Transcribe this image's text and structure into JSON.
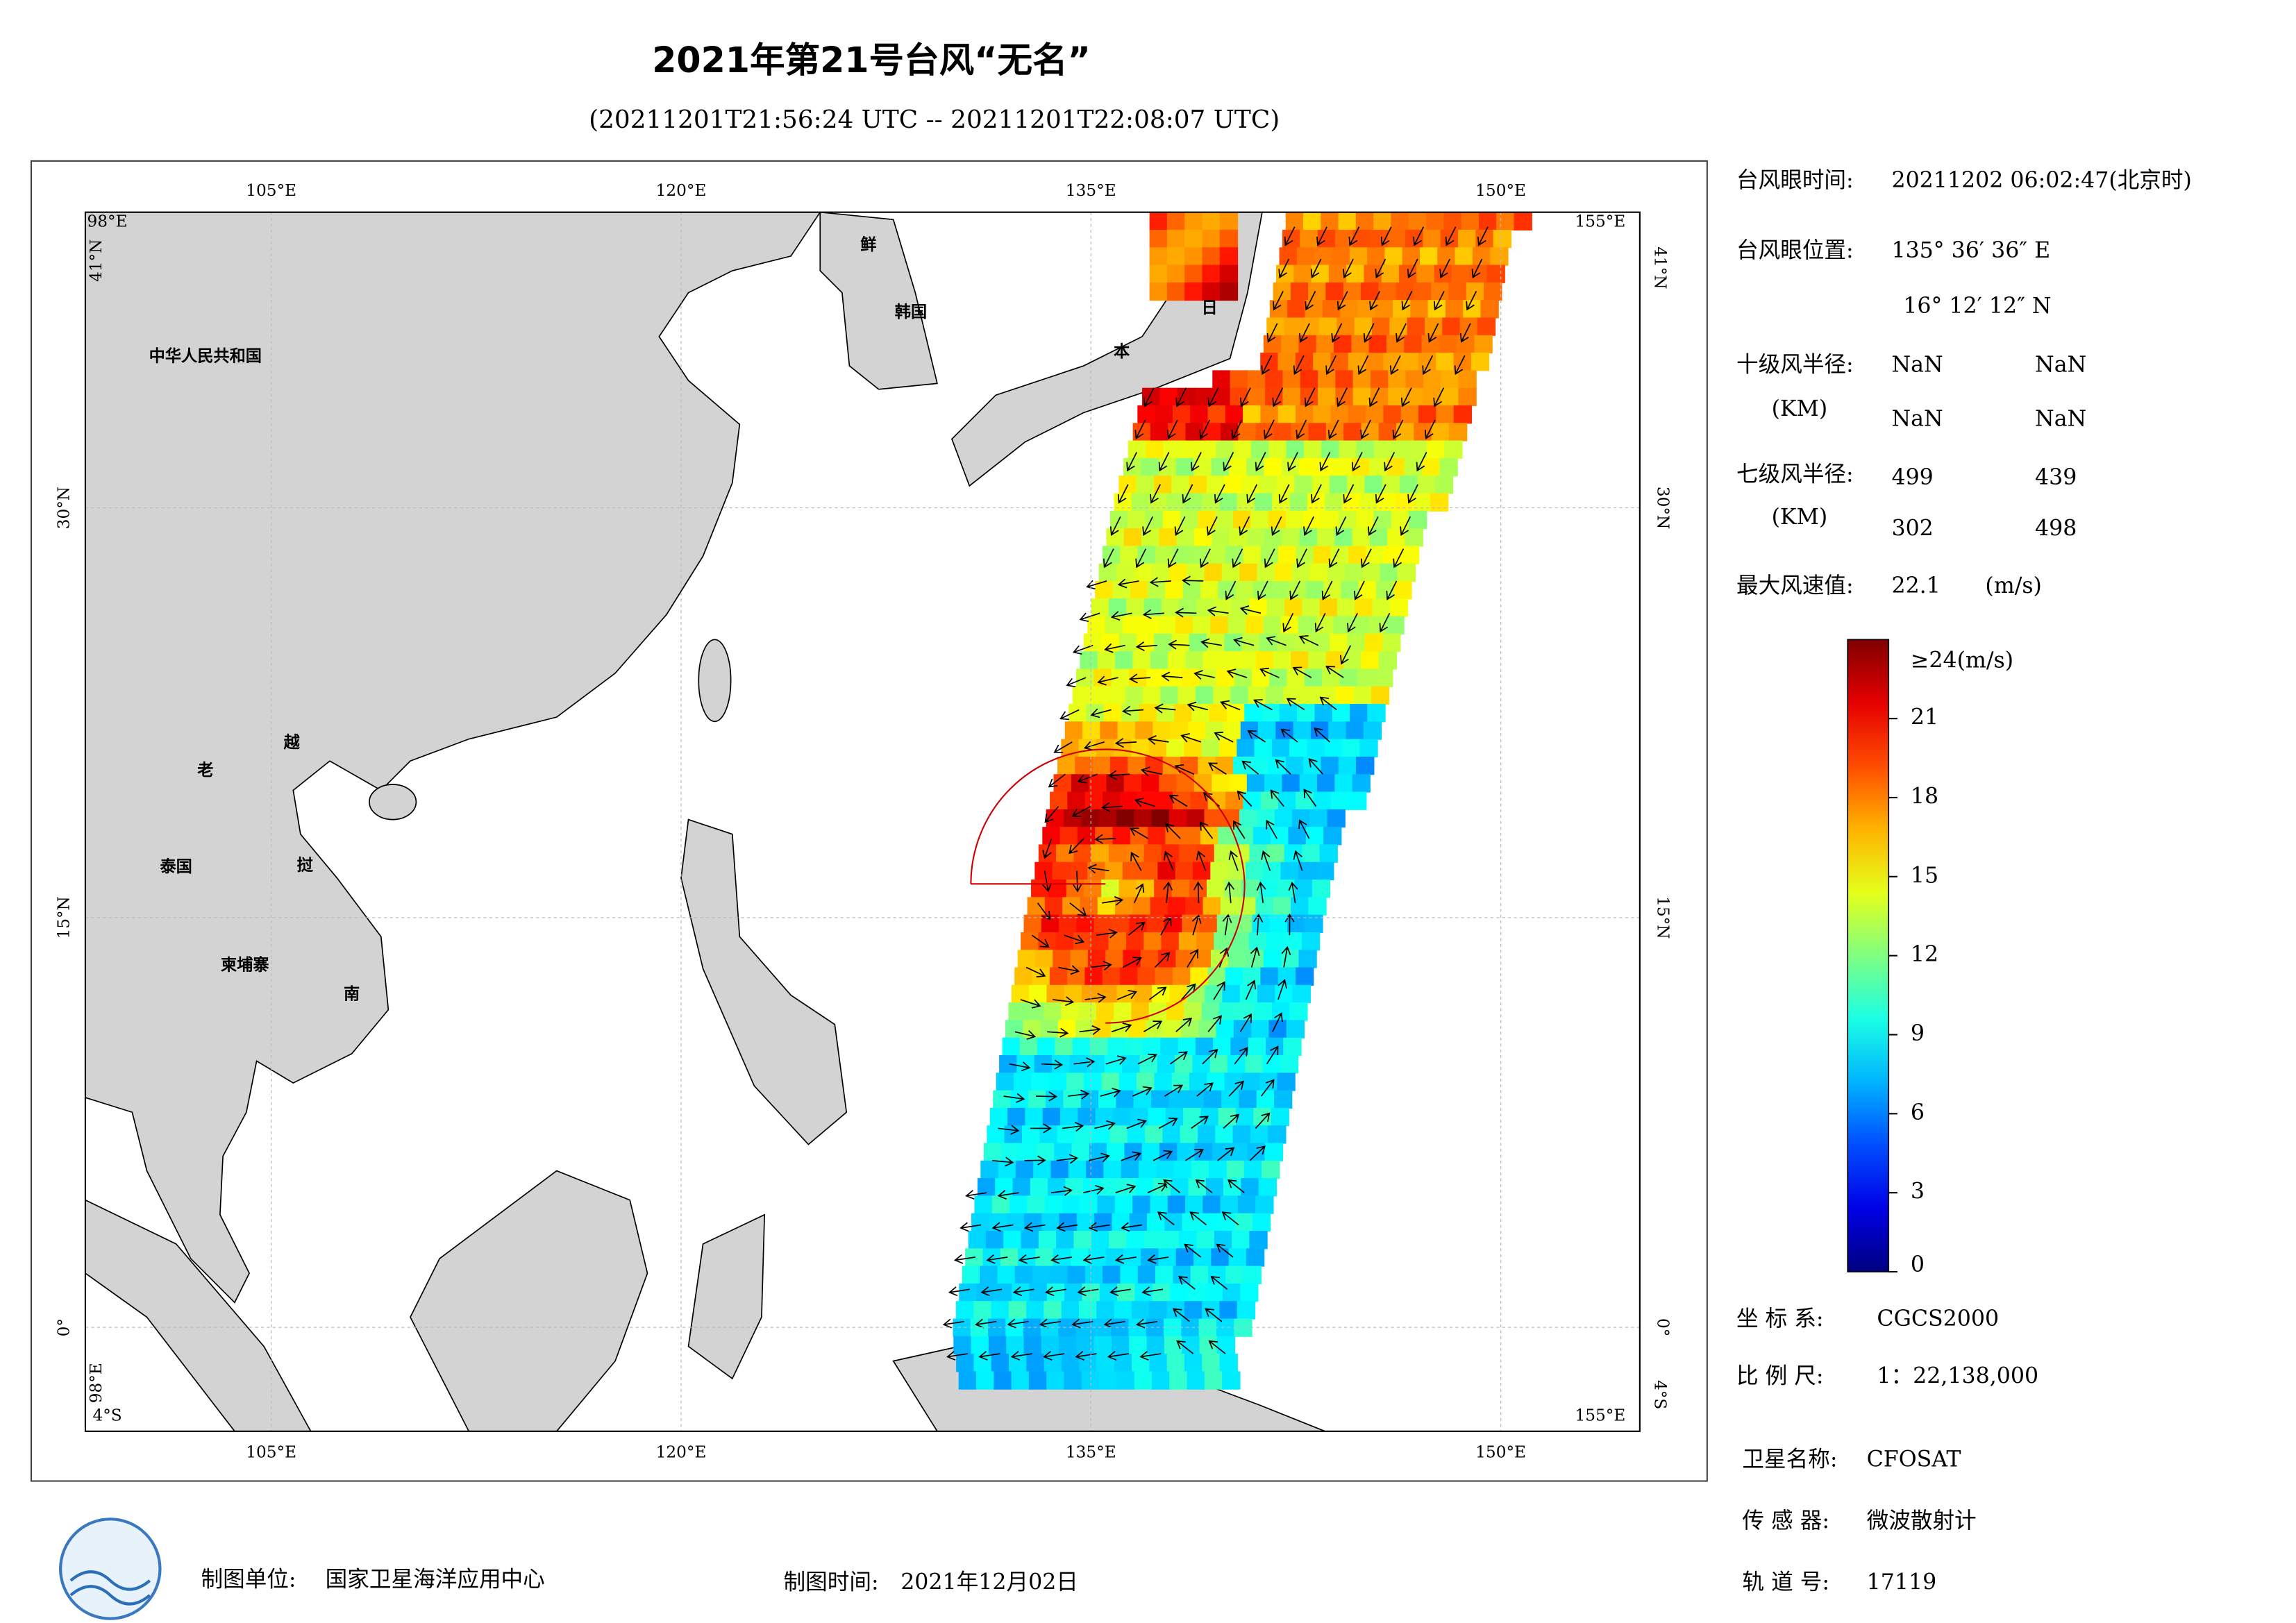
{
  "header": {
    "title": "2021年第21号台风“无名”",
    "subtitle": "(20211201T21:56:24 UTC -- 20211201T22:08:07 UTC)"
  },
  "map": {
    "lon_labels": [
      "105°E",
      "120°E",
      "135°E",
      "150°E"
    ],
    "lat_labels": [
      "30°N",
      "15°N",
      "0°"
    ],
    "corners": {
      "west": "98°E",
      "east": "155°E",
      "north": "41°N",
      "south": "4°S"
    },
    "place_labels": [
      "中华人民共和国",
      "鲜",
      "韩国",
      "日",
      "本",
      "老",
      "越",
      "挝",
      "泰国",
      "柬埔寨",
      "南"
    ]
  },
  "info": {
    "eye_time_label": "台风眼时间:",
    "eye_time": "20211202 06:02:47(北京时)",
    "eye_pos_label": "台风眼位置:",
    "eye_lon": "135° 36′ 36″ E",
    "eye_lat": "16° 12′ 12″ N",
    "r10_label": "十级风半径:",
    "unit_km": "(KM)",
    "r10": [
      "NaN",
      "NaN",
      "NaN",
      "NaN"
    ],
    "r7_label": "七级风半径:",
    "r7": [
      499,
      439,
      302,
      498
    ],
    "max_wind_label": "最大风速值:",
    "max_wind": 22.1,
    "max_wind_unit": "(m/s)",
    "crs_label": "坐 标 系:",
    "crs": "CGCS2000",
    "scale_label": "比 例 尺:",
    "scale": "1：22,138,000",
    "satellite_label": "卫星名称:",
    "satellite": "CFOSAT",
    "sensor_label": "传 感 器:",
    "sensor": "微波散射计",
    "orbit_label": "轨 道 号:",
    "orbit": "17119"
  },
  "colorbar": {
    "range": [
      0,
      24
    ],
    "ticks": [
      0,
      3,
      6,
      9,
      12,
      15,
      18,
      21
    ],
    "top_label": "≥24(m/s)"
  },
  "footer": {
    "maker_label": "制图单位:",
    "maker": "国家卫星海洋应用中心",
    "date_label": "制图时间:",
    "date": "2021年12月02日"
  }
}
